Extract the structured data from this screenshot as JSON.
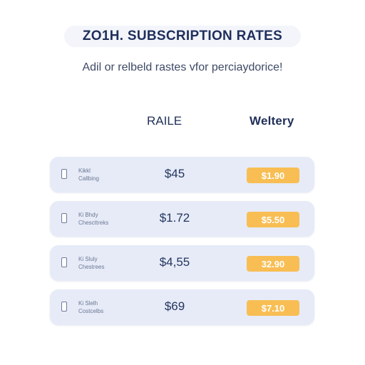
{
  "header": {
    "title": "ZO1H.  SUBSCRIPTION RATES",
    "subtitle": "Adil or relbeld rastes vfor perciaydorice!"
  },
  "columns": {
    "rate": "RAILE",
    "weltery": "Weltery"
  },
  "rows": [
    {
      "plan_name": "Kikkl",
      "plan_sub": "Callbing",
      "rate": "$45",
      "weltery": "$1.90"
    },
    {
      "plan_name": "Ki Bhdy",
      "plan_sub": "Chescttreks",
      "rate": "$1.72",
      "weltery": "$5.50"
    },
    {
      "plan_name": "Ki Sluly",
      "plan_sub": "Chestrees",
      "rate": "$4,55",
      "weltery": "32.90"
    },
    {
      "plan_name": "Ki Slelh",
      "plan_sub": "Costcelbs",
      "rate": "$69",
      "weltery": "$7.10"
    }
  ],
  "colors": {
    "title_text": "#1f2f5c",
    "row_background": "#e6ebf7",
    "badge_background": "#f8be54",
    "badge_text": "#ffffff"
  },
  "icons": {
    "row_icon": "document-icon"
  }
}
